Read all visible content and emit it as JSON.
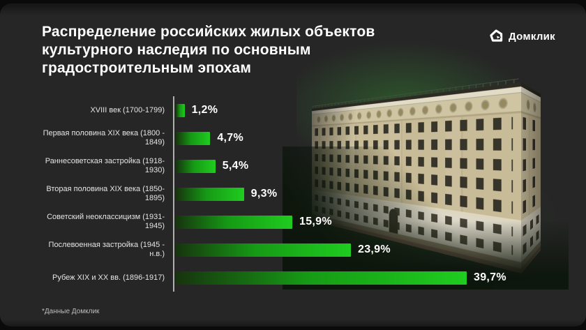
{
  "colors": {
    "background": "#262626",
    "bar_gradient_start": "#17330e",
    "bar_gradient_end": "#1fcc1f",
    "axis": "#b0b0b0",
    "title_text": "#ffffff"
  },
  "header": {
    "title_lines": [
      "Распределение российских жилых объектов",
      "культурного наследия по основным",
      "градостроительным эпохам"
    ],
    "logo_text": "Домклик"
  },
  "chart_data": {
    "type": "bar",
    "orientation": "horizontal",
    "title": "Распределение российских жилых объектов культурного наследия по основным градостроительным эпохам",
    "categories": [
      "XVIII век (1700-1799)",
      "Первая половина XIX века (1800 - 1849)",
      "Раннесоветская застройка (1918-1930)",
      "Вторая половина XIX века (1850-1895)",
      "Советский неоклассицизм (1931-1945)",
      "Послевоенная застройка (1945 - н.в.)",
      "Рубеж XIX и XX вв. (1896-1917)"
    ],
    "values": [
      1.2,
      4.7,
      5.4,
      9.3,
      15.9,
      23.9,
      39.7
    ],
    "value_labels": [
      "1,2%",
      "4,7%",
      "5,4%",
      "9,3%",
      "15,9%",
      "23,9%",
      "39,7%"
    ],
    "unit": "%",
    "xlim": [
      0,
      40
    ],
    "grid": false,
    "legend": null
  },
  "footer": {
    "source_note": "*Данные Домклик"
  }
}
